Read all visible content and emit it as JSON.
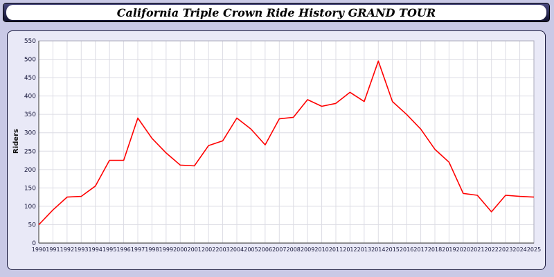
{
  "title": "California Triple Crown Ride History GRAND TOUR",
  "colors": {
    "page_background": "#c9c9e6",
    "panel_background": "#e9e9f7",
    "plot_background": "#ffffff",
    "grid": "#dcdce4",
    "axis": "#555555",
    "line": "#ff0000"
  },
  "chart_data": {
    "type": "line",
    "title": "California Triple Crown Ride History GRAND TOUR",
    "xlabel": "",
    "ylabel": "Riders",
    "ylim": [
      0,
      550
    ],
    "ytick_step": 50,
    "grid": true,
    "legend": "none",
    "x": [
      1990,
      1991,
      1992,
      1993,
      1994,
      1995,
      1996,
      1997,
      1998,
      1999,
      2000,
      2001,
      2002,
      2003,
      2004,
      2005,
      2006,
      2007,
      2008,
      2009,
      2010,
      2011,
      2012,
      2013,
      2014,
      2015,
      2016,
      2017,
      2018,
      2019,
      2020,
      2021,
      2022,
      2023,
      2024,
      2025
    ],
    "series": [
      {
        "name": "Riders",
        "color": "#ff0000",
        "values": [
          50,
          90,
          125,
          127,
          155,
          225,
          225,
          340,
          285,
          245,
          212,
          210,
          265,
          278,
          340,
          310,
          267,
          338,
          342,
          390,
          372,
          380,
          410,
          385,
          495,
          385,
          350,
          310,
          255,
          220,
          135,
          130,
          85,
          130,
          127,
          125
        ]
      }
    ]
  }
}
